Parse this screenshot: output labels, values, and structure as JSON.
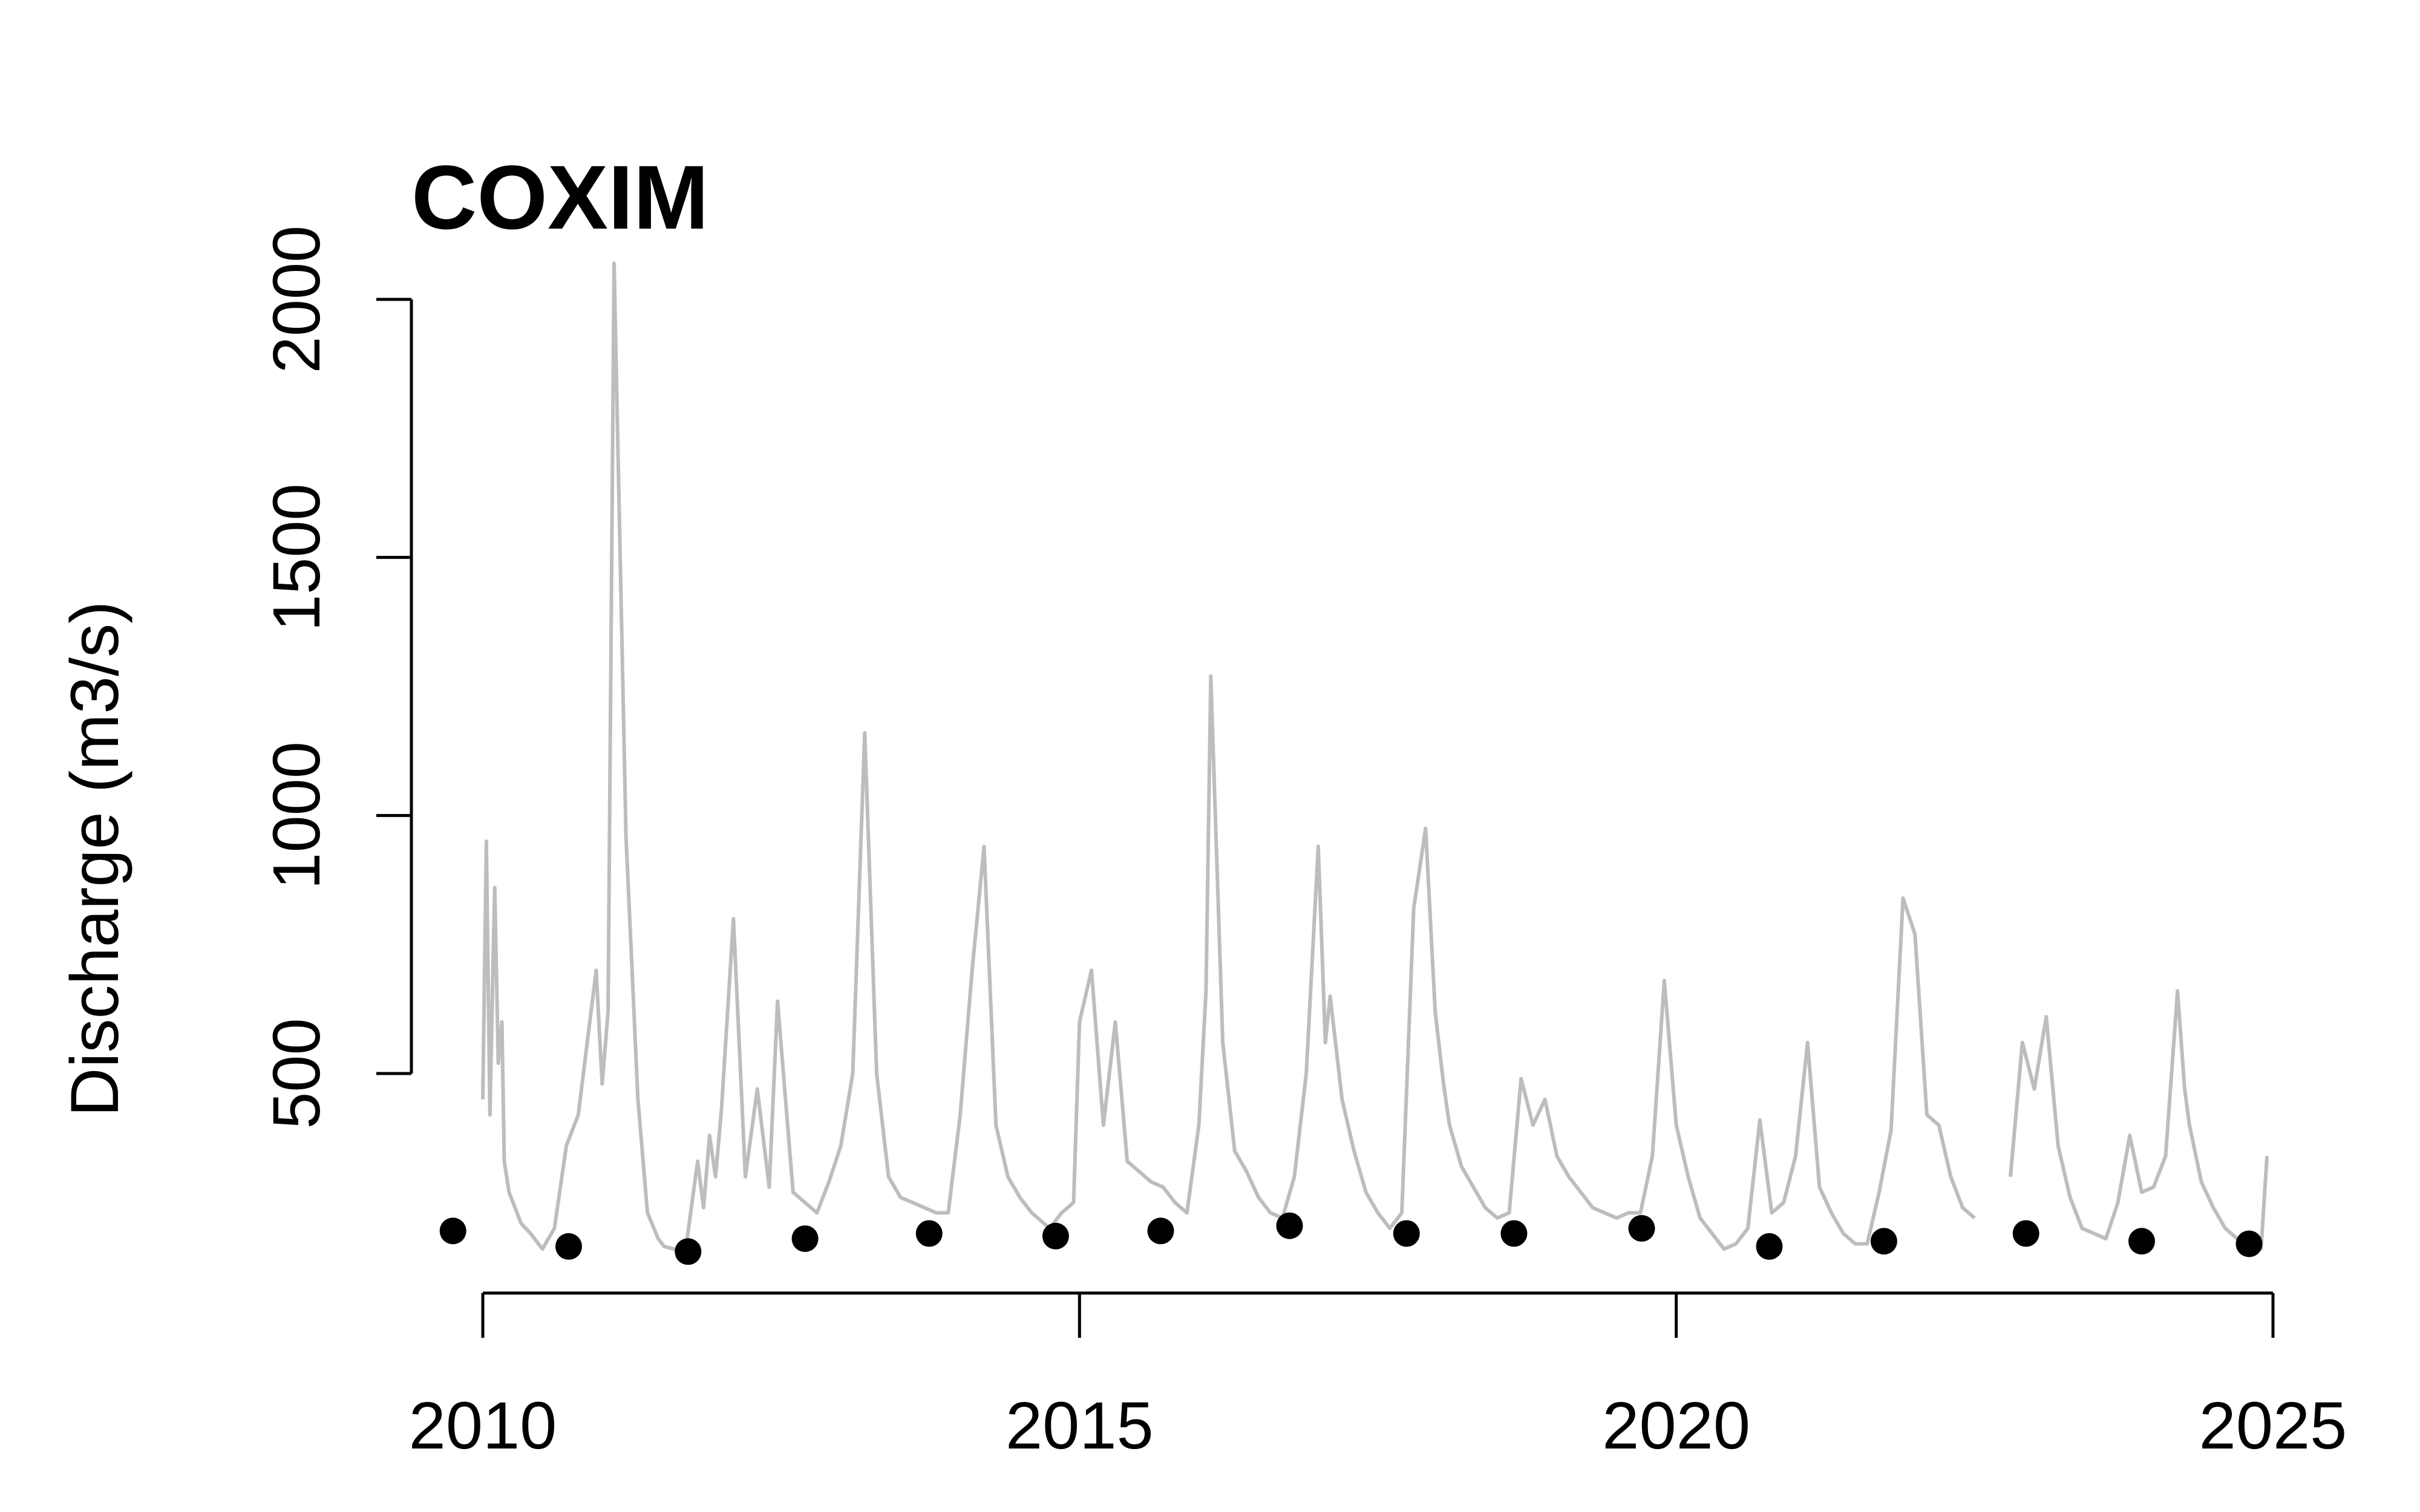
{
  "chart_data": {
    "type": "line",
    "title": "COXIM",
    "xlabel": "",
    "ylabel": "Discharge (m3/s)",
    "xlim": [
      2010,
      2025
    ],
    "ylim": [
      0,
      2000
    ],
    "x_ticks": [
      2010,
      2015,
      2020,
      2025
    ],
    "y_ticks": [
      500,
      1000,
      1500,
      2000
    ],
    "grid": false,
    "colors": {
      "flow": "#bdbdbd",
      "minimum": "#000000"
    },
    "series": [
      {
        "style": "line",
        "x": [
          2010.0,
          2010.03,
          2010.06,
          2010.09,
          2010.1,
          2010.13,
          2010.16,
          2010.18,
          2010.22,
          2010.27,
          2010.32,
          2010.4,
          2010.5,
          2010.6,
          2010.7,
          2010.8,
          2010.95,
          2011.0,
          2011.05,
          2011.1,
          2011.2,
          2011.3,
          2011.38,
          2011.47,
          2011.52,
          2011.6,
          2011.7,
          2011.8,
          2011.85,
          2011.9,
          2011.95,
          2012.0,
          2012.1,
          2012.2,
          2012.3,
          2012.4,
          2012.47,
          2012.6,
          2012.7,
          2012.8,
          2012.9,
          2013.0,
          2013.1,
          2013.2,
          2013.3,
          2013.4,
          2013.5,
          2013.6,
          2013.7,
          2013.8,
          2013.9,
          2014.0,
          2014.1,
          2014.2,
          2014.3,
          2014.4,
          2014.5,
          2014.6,
          2014.75,
          2014.85,
          2014.95,
          2015.0,
          2015.1,
          2015.2,
          2015.3,
          2015.4,
          2015.5,
          2015.6,
          2015.7,
          2015.8,
          2015.9,
          2016.0,
          2016.06,
          2016.1,
          2016.2,
          2016.3,
          2016.4,
          2016.5,
          2016.6,
          2016.7,
          2016.8,
          2016.9,
          2017.0,
          2017.06,
          2017.1,
          2017.2,
          2017.3,
          2017.4,
          2017.5,
          2017.6,
          2017.7,
          2017.8,
          2017.9,
          2017.98,
          2018.05,
          2018.1,
          2018.2,
          2018.3,
          2018.4,
          2018.5,
          2018.6,
          2018.7,
          2018.8,
          2018.9,
          2019.0,
          2019.1,
          2019.2,
          2019.3,
          2019.4,
          2019.5,
          2019.6,
          2019.7,
          2019.8,
          2019.9,
          2020.0,
          2020.1,
          2020.2,
          2020.3,
          2020.4,
          2020.5,
          2020.6,
          2020.7,
          2020.8,
          2020.9,
          2021.0,
          2021.1,
          2021.2,
          2021.3,
          2021.4,
          2021.5,
          2021.6,
          2021.7,
          2021.8,
          2021.9,
          2022.0,
          2022.1,
          2022.2,
          2022.3,
          2022.4,
          2022.5,
          null,
          2022.8,
          2022.9,
          2023.0,
          2023.1,
          2023.2,
          2023.3,
          2023.4,
          2023.5,
          2023.6,
          2023.7,
          2023.8,
          2023.9,
          2024.0,
          2024.1,
          2024.2,
          2024.26,
          2024.3,
          2024.4,
          2024.5,
          2024.6,
          2024.7,
          2024.8,
          2024.9,
          2024.95
        ],
        "y": [
          450,
          950,
          420,
          760,
          860,
          520,
          600,
          330,
          270,
          240,
          210,
          190,
          160,
          200,
          360,
          420,
          700,
          480,
          620,
          2070,
          960,
          450,
          230,
          180,
          165,
          160,
          160,
          330,
          240,
          380,
          300,
          430,
          800,
          300,
          470,
          280,
          640,
          270,
          250,
          230,
          290,
          360,
          500,
          1160,
          500,
          300,
          260,
          250,
          240,
          230,
          230,
          420,
          700,
          940,
          400,
          300,
          260,
          230,
          200,
          230,
          250,
          600,
          700,
          400,
          600,
          330,
          310,
          290,
          280,
          250,
          230,
          400,
          660,
          1270,
          560,
          350,
          310,
          260,
          230,
          220,
          300,
          500,
          940,
          560,
          650,
          450,
          350,
          270,
          230,
          200,
          230,
          820,
          975,
          620,
          480,
          400,
          320,
          280,
          240,
          220,
          230,
          490,
          400,
          450,
          340,
          300,
          270,
          240,
          230,
          220,
          230,
          230,
          340,
          680,
          400,
          300,
          220,
          190,
          160,
          170,
          200,
          410,
          230,
          250,
          340,
          560,
          280,
          230,
          190,
          170,
          170,
          270,
          390,
          840,
          770,
          420,
          400,
          300,
          240,
          220,
          null,
          300,
          560,
          470,
          610,
          360,
          260,
          200,
          190,
          180,
          250,
          380,
          270,
          280,
          340,
          660,
          470,
          400,
          290,
          240,
          200,
          180,
          170,
          160,
          340
        ]
      },
      {
        "style": "points",
        "x": [
          2009.75,
          2010.72,
          2011.72,
          2012.7,
          2013.74,
          2014.8,
          2015.68,
          2016.76,
          2017.74,
          2018.64,
          2019.71,
          2020.78,
          2021.74,
          2022.93,
          2023.9,
          2024.8
        ],
        "y": [
          195,
          165,
          155,
          180,
          190,
          185,
          195,
          205,
          190,
          190,
          200,
          165,
          175,
          190,
          175,
          170
        ]
      }
    ]
  }
}
